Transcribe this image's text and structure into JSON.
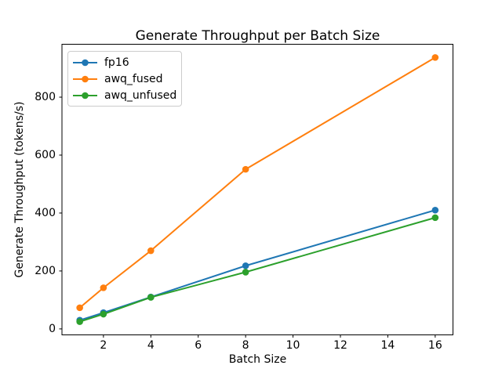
{
  "chart_data": {
    "type": "line",
    "title": "Generate Throughput per Batch Size",
    "xlabel": "Batch Size",
    "ylabel": "Generate Throughput (tokens/s)",
    "x": [
      1,
      2,
      4,
      8,
      16
    ],
    "series": [
      {
        "name": "fp16",
        "color": "#1f77b4",
        "values": [
          30,
          56,
          110,
          218,
          410
        ]
      },
      {
        "name": "awq_fused",
        "color": "#ff7f0e",
        "values": [
          73,
          142,
          270,
          551,
          937
        ]
      },
      {
        "name": "awq_unfused",
        "color": "#2ca02c",
        "values": [
          25,
          51,
          109,
          196,
          384
        ]
      }
    ],
    "xticks": [
      2,
      4,
      6,
      8,
      10,
      12,
      14,
      16
    ],
    "yticks": [
      0,
      200,
      400,
      600,
      800
    ],
    "xlim": [
      0.25,
      16.75
    ],
    "ylim": [
      -20.6,
      982.6
    ],
    "grid": false,
    "marker": "o",
    "legend_position": "upper left",
    "axis_color": "#000000",
    "background_color": "#ffffff"
  }
}
